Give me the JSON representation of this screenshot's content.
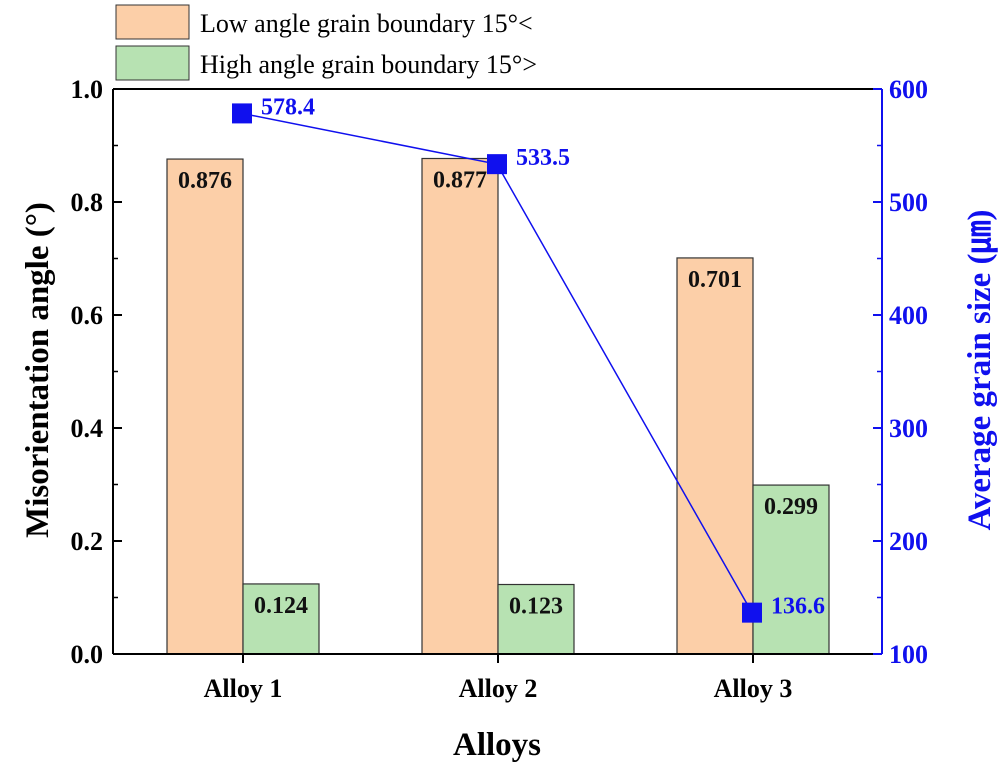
{
  "chart_data": {
    "type": "bar",
    "categories": [
      "Alloy 1",
      "Alloy 2",
      "Alloy 3"
    ],
    "xlabel": "Alloys",
    "ylabel": "Misorientation angle (°)",
    "ylim": [
      0,
      1.0
    ],
    "yticks": [
      "0.0",
      "0.2",
      "0.4",
      "0.6",
      "0.8",
      "1.0"
    ],
    "series": [
      {
        "name": "Low angle grain boundary 15°<",
        "values": [
          0.876,
          0.877,
          0.701
        ],
        "labels": [
          "0.876",
          "0.877",
          "0.701"
        ],
        "color": "#fccfa8"
      },
      {
        "name": "High angle grain boundary 15°>",
        "values": [
          0.124,
          0.123,
          0.299
        ],
        "labels": [
          "0.124",
          "0.123",
          "0.299"
        ],
        "color": "#b7e2b2"
      }
    ],
    "secondary": {
      "type": "line",
      "ylabel": "Average grain size (㎛)",
      "ylim": [
        100,
        600
      ],
      "yticks": [
        "100",
        "200",
        "300",
        "400",
        "500",
        "600"
      ],
      "values": [
        578.4,
        533.5,
        136.6
      ],
      "labels": [
        "578.4",
        "533.5",
        "136.6"
      ],
      "color": "#1010ee"
    },
    "legend_position": "top-left, above plot",
    "grid": false
  }
}
